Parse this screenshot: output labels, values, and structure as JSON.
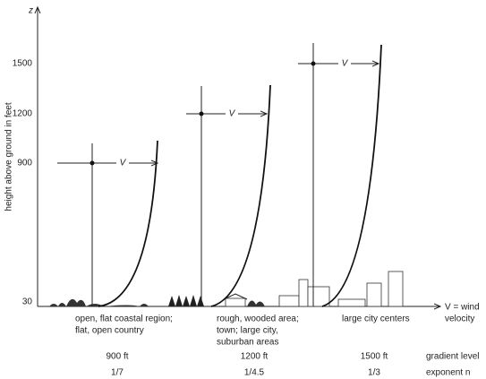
{
  "axis": {
    "z_label": "z",
    "y_label": "height above ground in feet",
    "ticks": [
      "1500",
      "1200",
      "900",
      "30"
    ],
    "x_label": [
      "V = wind",
      "velocity"
    ]
  },
  "profiles": [
    {
      "velocity_label": "V",
      "terrain": [
        "open, flat coastal region;",
        "flat, open country"
      ],
      "gradient_level": "900 ft",
      "exponent": "1/7"
    },
    {
      "velocity_label": "V",
      "terrain": [
        "rough, wooded area;",
        "town; large city,",
        "suburban areas"
      ],
      "gradient_level": "1200 ft",
      "exponent": "1/4.5"
    },
    {
      "velocity_label": "V",
      "terrain": [
        "large city centers"
      ],
      "gradient_level": "1500 ft",
      "exponent": "1/3"
    }
  ],
  "row_labels": {
    "gradient_level": "gradient level",
    "exponent": "exponent n"
  }
}
